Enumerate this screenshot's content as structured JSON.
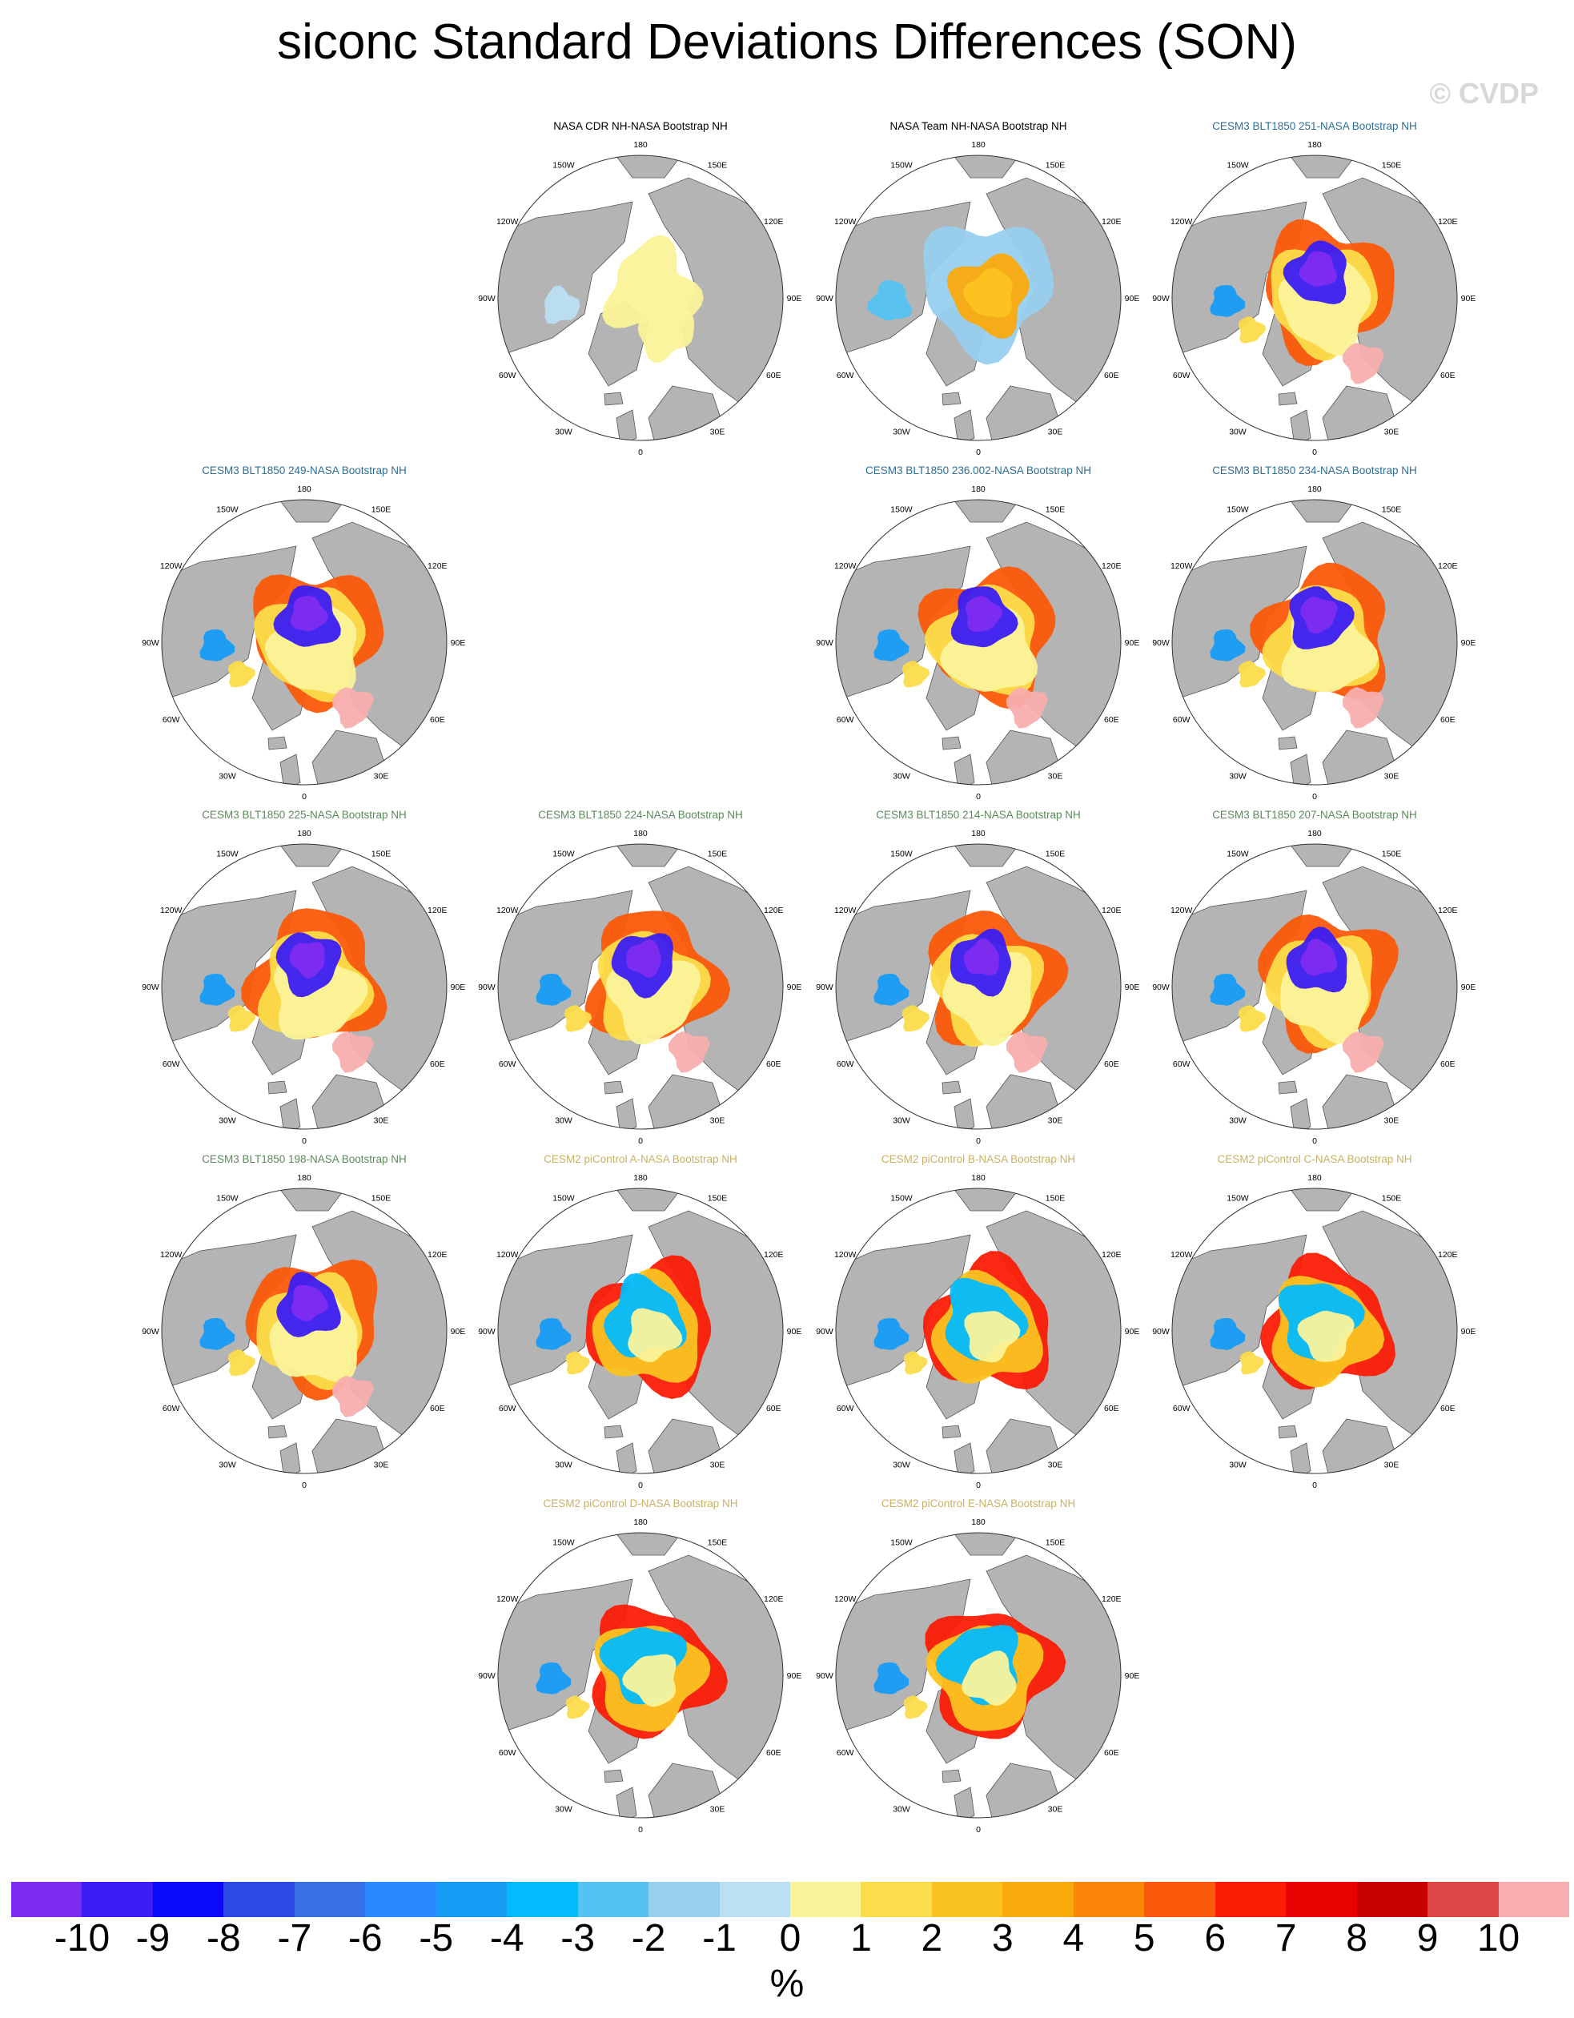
{
  "title": "siconc Standard Deviations Differences (SON)",
  "watermark": "© CVDP",
  "colors": {
    "land": "#b4b4b4",
    "ocean": "#ffffff",
    "obs_title": "#000000",
    "cesm3_title_blue": "#2e6e96",
    "cesm3_title_green": "#5b8a5b",
    "cesm2_title": "#c8b264"
  },
  "panels": [
    {
      "title": "NASA CDR NH-NASA Bootstrap NH",
      "title_color": "obs",
      "pattern": "cdr"
    },
    {
      "title": "NASA Team NH-NASA Bootstrap NH",
      "title_color": "obs",
      "pattern": "team"
    },
    {
      "title": "CESM3 BLT1850 251-NASA Bootstrap NH",
      "title_color": "blue",
      "pattern": "cesm3"
    },
    {
      "title": "CESM3 BLT1850 249-NASA Bootstrap NH",
      "title_color": "blue",
      "pattern": "cesm3"
    },
    {
      "title": "CESM3 BLT1850 236.002-NASA Bootstrap NH",
      "title_color": "blue",
      "pattern": "cesm3"
    },
    {
      "title": "CESM3 BLT1850 234-NASA Bootstrap NH",
      "title_color": "blue",
      "pattern": "cesm3"
    },
    {
      "title": "CESM3 BLT1850 225-NASA Bootstrap NH",
      "title_color": "green",
      "pattern": "cesm3"
    },
    {
      "title": "CESM3 BLT1850 224-NASA Bootstrap NH",
      "title_color": "green",
      "pattern": "cesm3"
    },
    {
      "title": "CESM3 BLT1850 214-NASA Bootstrap NH",
      "title_color": "green",
      "pattern": "cesm3"
    },
    {
      "title": "CESM3 BLT1850 207-NASA Bootstrap NH",
      "title_color": "green",
      "pattern": "cesm3"
    },
    {
      "title": "CESM3 BLT1850 198-NASA Bootstrap NH",
      "title_color": "green",
      "pattern": "cesm3"
    },
    {
      "title": "CESM2 piControl A-NASA Bootstrap NH",
      "title_color": "cesm2",
      "pattern": "cesm2"
    },
    {
      "title": "CESM2 piControl B-NASA Bootstrap NH",
      "title_color": "cesm2",
      "pattern": "cesm2"
    },
    {
      "title": "CESM2 piControl C-NASA Bootstrap NH",
      "title_color": "cesm2",
      "pattern": "cesm2"
    },
    {
      "title": "CESM2 piControl D-NASA Bootstrap NH",
      "title_color": "cesm2",
      "pattern": "cesm2"
    },
    {
      "title": "CESM2 piControl E-NASA Bootstrap NH",
      "title_color": "cesm2",
      "pattern": "cesm2"
    }
  ],
  "longitude_labels": [
    "180",
    "150E",
    "120E",
    "90E",
    "60E",
    "30E",
    "0",
    "30W",
    "60W",
    "90W",
    "120W",
    "150W"
  ],
  "colorbar": {
    "colors": [
      "#7f2bef",
      "#3b1cf4",
      "#0a0af9",
      "#2c4ae6",
      "#386fe5",
      "#2a89ff",
      "#179cf5",
      "#02bbfc",
      "#54c3f1",
      "#97cfee",
      "#bbdff3",
      "#fbf39a",
      "#fbdc4a",
      "#fbc321",
      "#fbaa0c",
      "#fb8608",
      "#fb5a0a",
      "#fb1c06",
      "#e80202",
      "#c80000",
      "#dc4646",
      "#f8aeae"
    ],
    "tick_labels": [
      "-10",
      "-9",
      "-8",
      "-7",
      "-6",
      "-5",
      "-4",
      "-3",
      "-2",
      "-1",
      "0",
      "1",
      "2",
      "3",
      "4",
      "5",
      "6",
      "7",
      "8",
      "9",
      "10"
    ],
    "units": "%"
  }
}
